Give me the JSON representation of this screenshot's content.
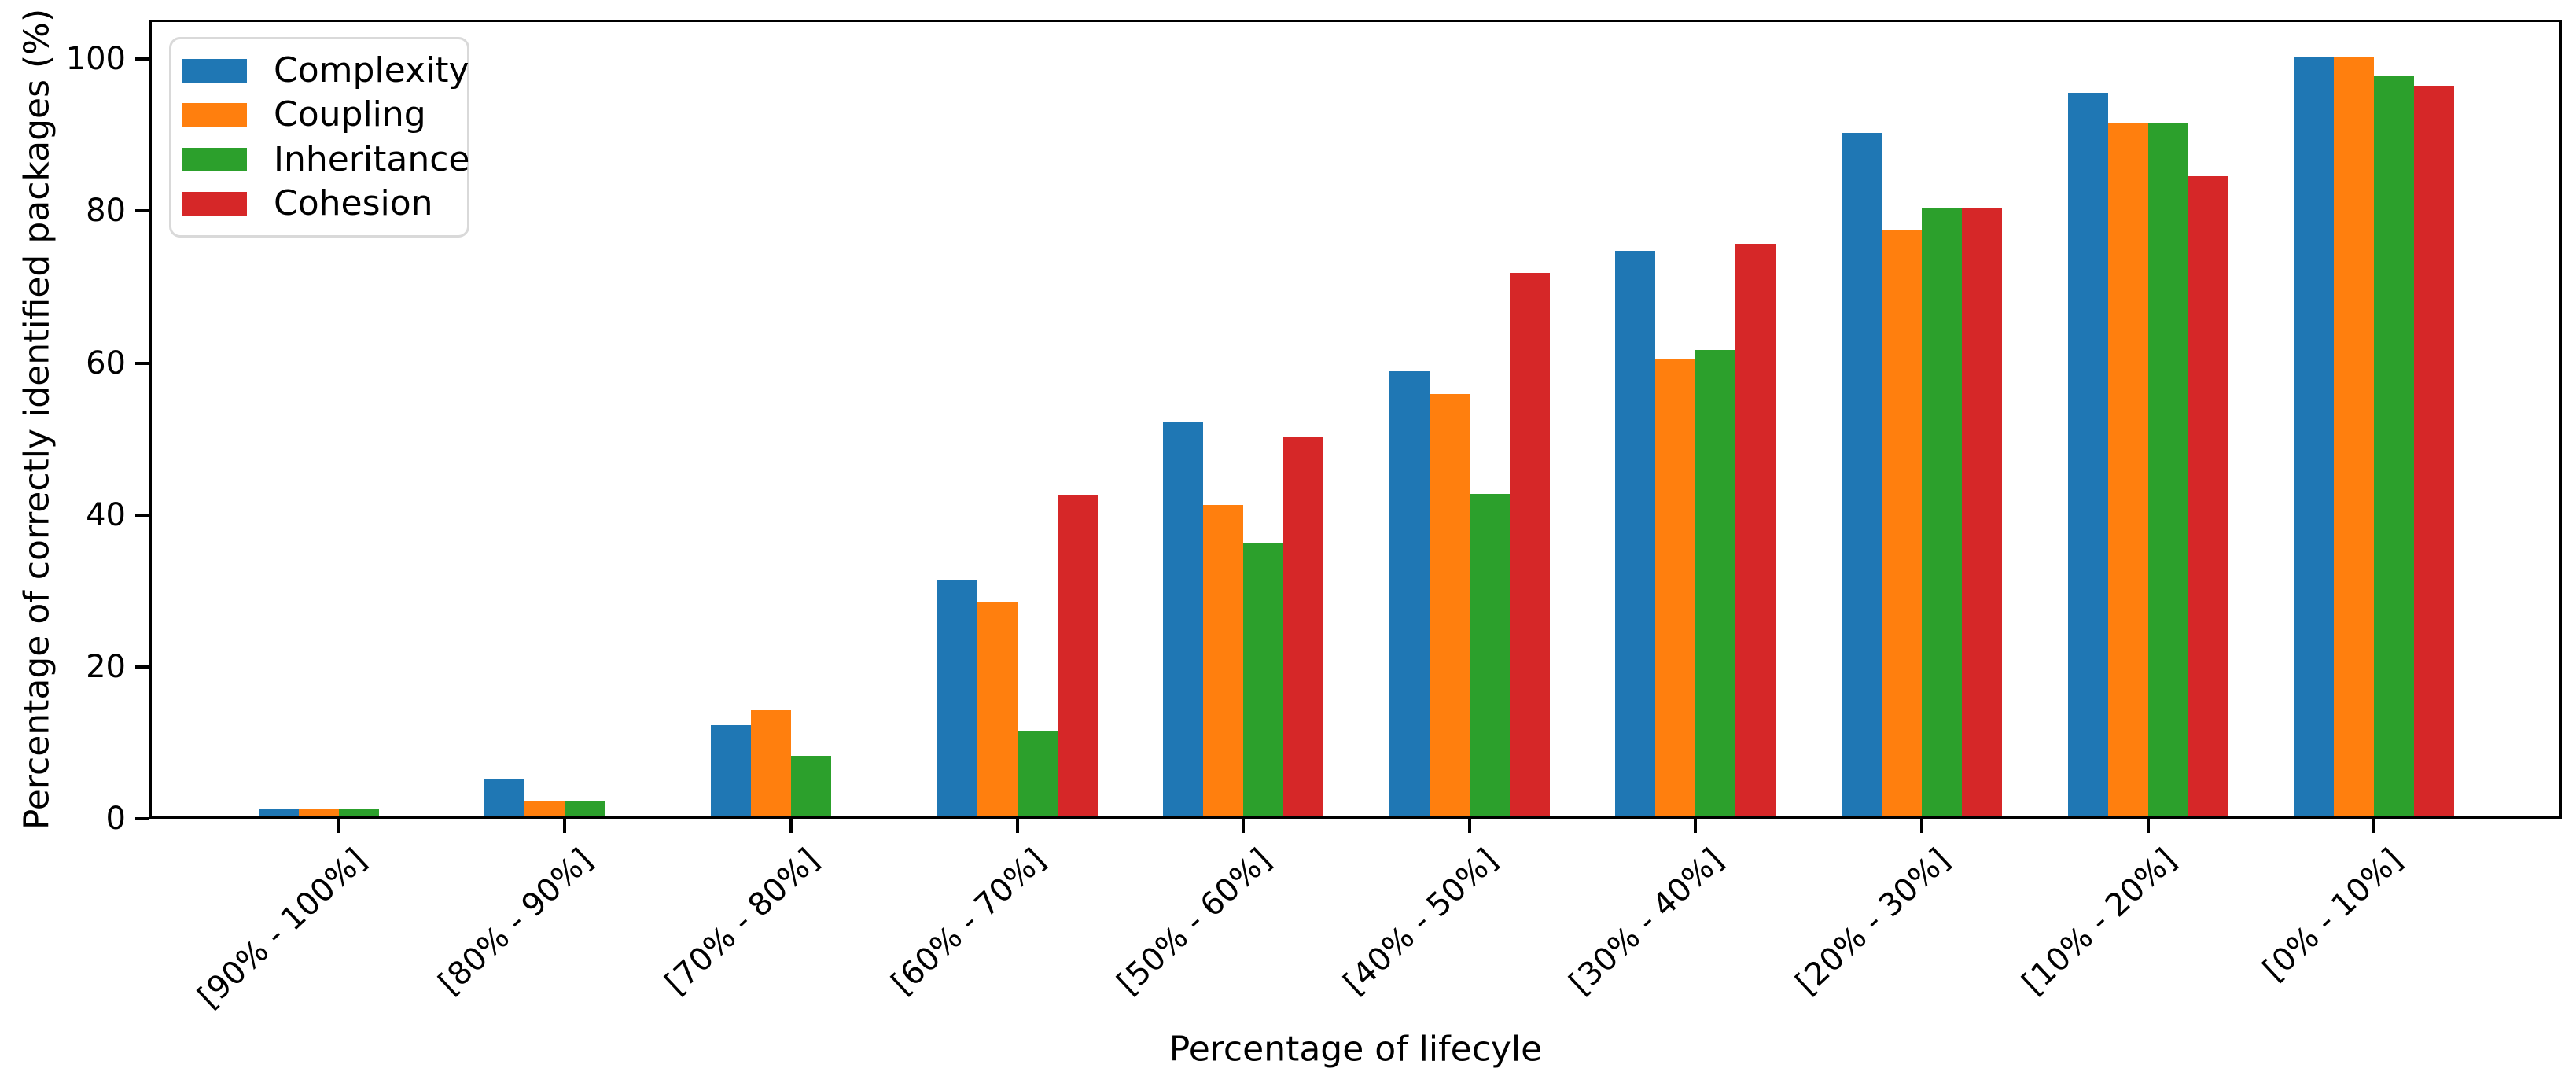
{
  "chart_data": {
    "type": "bar",
    "title": "",
    "xlabel": "Percentage of lifecyle",
    "ylabel": "Percentage of correctly identified packages (%)",
    "categories": [
      "[90% - 100%]",
      "[80% - 90%]",
      "[70% - 80%]",
      "[60% - 70%]",
      "[50% - 60%]",
      "[40% - 50%]",
      "[30% - 40%]",
      "[20% - 30%]",
      "[10% - 20%]",
      "[0% - 10%]"
    ],
    "series": [
      {
        "name": "Complexity",
        "color": "#1f77b4",
        "values": [
          1,
          5,
          12,
          31.2,
          52,
          58.6,
          74.4,
          90,
          95.3,
          100
        ]
      },
      {
        "name": "Coupling",
        "color": "#ff7f0e",
        "values": [
          1,
          2,
          14,
          28.2,
          41,
          55.6,
          60.3,
          77.2,
          91.3,
          100
        ]
      },
      {
        "name": "Inheritance",
        "color": "#2ca02c",
        "values": [
          1,
          2,
          8,
          11.3,
          35.9,
          42.5,
          61.4,
          80,
          91.3,
          97.4
        ]
      },
      {
        "name": "Cohesion",
        "color": "#d62728",
        "values": [
          0,
          0,
          0,
          42.3,
          50,
          71.6,
          75.4,
          80,
          84.3,
          96.2
        ]
      }
    ],
    "yticks": [
      0,
      20,
      40,
      60,
      80,
      100
    ],
    "ylim": [
      0,
      105.2
    ],
    "xtick_rotation_deg": 45,
    "grid": false,
    "legend_position": "upper left",
    "axis_color": "#000000",
    "background_color": "#ffffff",
    "legend_border_color": "#d9d9d9"
  }
}
